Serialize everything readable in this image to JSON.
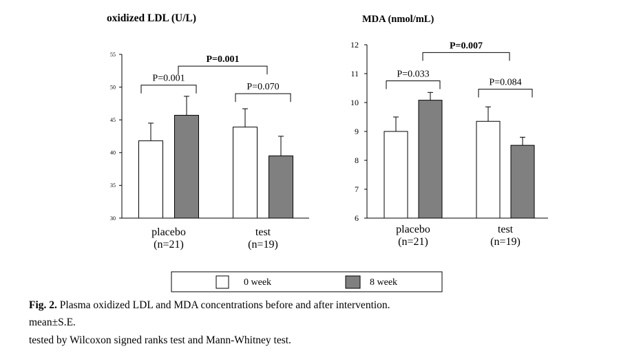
{
  "chart_data": [
    {
      "type": "bar",
      "title": "oxidized LDL (U/L)",
      "xlabel": "",
      "ylabel": "",
      "ylim": [
        30,
        55
      ],
      "yticks": [
        30,
        35,
        40,
        45,
        50,
        55
      ],
      "categories": [
        "placebo (n=21)",
        "test (n=19)"
      ],
      "category_lines": [
        [
          "placebo",
          "(n=21)"
        ],
        [
          "test",
          "(n=19)"
        ]
      ],
      "series": [
        {
          "name": "0 week",
          "values": [
            41.8,
            43.9
          ],
          "errors": [
            2.7,
            2.8
          ]
        },
        {
          "name": "8 week",
          "values": [
            45.7,
            39.5
          ],
          "errors": [
            2.9,
            3.0
          ]
        }
      ],
      "brackets": [
        {
          "label": "P=0.001",
          "bold": true,
          "between": "categories",
          "y": 53.2
        },
        {
          "label": "P=0.001",
          "bold": false,
          "category": 0,
          "y": 50.3
        },
        {
          "label": "P=0.070",
          "bold": false,
          "category": 1,
          "y": 49.0
        }
      ]
    },
    {
      "type": "bar",
      "title": "MDA (nmol/mL)",
      "xlabel": "",
      "ylabel": "",
      "ylim": [
        6,
        12
      ],
      "yticks": [
        6,
        7,
        8,
        9,
        10,
        11,
        12
      ],
      "categories": [
        "placebo (n=21)",
        "test (n=19)"
      ],
      "category_lines": [
        [
          "placebo",
          "(n=21)"
        ],
        [
          "test",
          "(n=19)"
        ]
      ],
      "series": [
        {
          "name": "0 week",
          "values": [
            9.0,
            9.35
          ],
          "errors": [
            0.5,
            0.5
          ]
        },
        {
          "name": "8 week",
          "values": [
            10.08,
            8.52
          ],
          "errors": [
            0.27,
            0.28
          ]
        }
      ],
      "brackets": [
        {
          "label": "P=0.007",
          "bold": true,
          "between": "categories",
          "y": 11.73
        },
        {
          "label": "P=0.033",
          "bold": false,
          "category": 0,
          "y": 10.75
        },
        {
          "label": "P=0.084",
          "bold": false,
          "category": 1,
          "y": 10.46
        }
      ]
    }
  ],
  "legend": {
    "items": [
      {
        "label": "0 week",
        "color": "#ffffff"
      },
      {
        "label": "8 week",
        "color": "#808080"
      }
    ]
  },
  "colors": {
    "week0": "#ffffff",
    "week8": "#808080",
    "axis": "#000000"
  },
  "caption": {
    "fig_label": "Fig. 2.",
    "fig_text": " Plasma oxidized LDL and MDA concentrations before and after intervention.",
    "line2": "mean±S.E.",
    "line3": "tested by Wilcoxon signed ranks test and Mann-Whitney test."
  }
}
